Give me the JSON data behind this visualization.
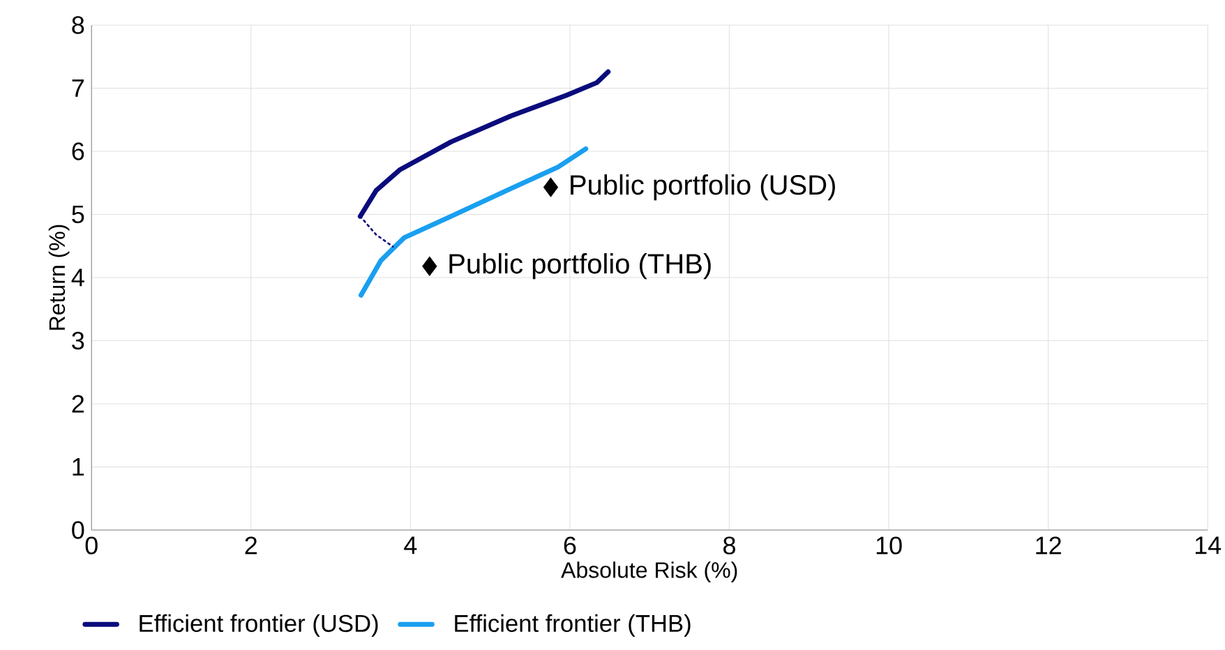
{
  "chart_data": {
    "type": "line",
    "xlabel": "Absolute Risk (%)",
    "ylabel": "Return (%)",
    "xlim": [
      0,
      14
    ],
    "ylim": [
      0,
      8
    ],
    "xticks": [
      0,
      2,
      4,
      6,
      8,
      10,
      12,
      14
    ],
    "yticks": [
      0,
      1,
      2,
      3,
      4,
      5,
      6,
      7,
      8
    ],
    "grid": true,
    "legend": "bottom",
    "marker": "none",
    "series": [
      {
        "name": "Efficient frontier (USD)",
        "color": "#0b0c7c",
        "x": [
          3.37,
          3.57,
          3.87,
          4.51,
          5.26,
          5.96,
          6.34,
          6.48
        ],
        "values": [
          4.97,
          5.38,
          5.71,
          6.15,
          6.56,
          6.89,
          7.09,
          7.26
        ]
      },
      {
        "name": "Efficient frontier (THB)",
        "color": "#1a9ff0",
        "x": [
          3.38,
          3.63,
          3.92,
          4.51,
          5.26,
          5.85,
          6.2
        ],
        "values": [
          3.72,
          4.27,
          4.63,
          4.97,
          5.41,
          5.75,
          6.04
        ]
      },
      {
        "type": "line",
        "line_style": "dotted",
        "color": "#0b0c7c",
        "x": [
          3.37,
          3.57,
          3.78
        ],
        "values": [
          4.97,
          4.68,
          4.49
        ]
      },
      {
        "type": "scatter",
        "marker": "diamond",
        "name": "Public portfolio (USD)",
        "color": "#000000",
        "x": [
          5.76
        ],
        "values": [
          5.43
        ]
      },
      {
        "type": "scatter",
        "marker": "diamond",
        "name": "Public portfolio (THB)",
        "color": "#000000",
        "x": [
          4.24
        ],
        "values": [
          4.18
        ]
      }
    ]
  }
}
